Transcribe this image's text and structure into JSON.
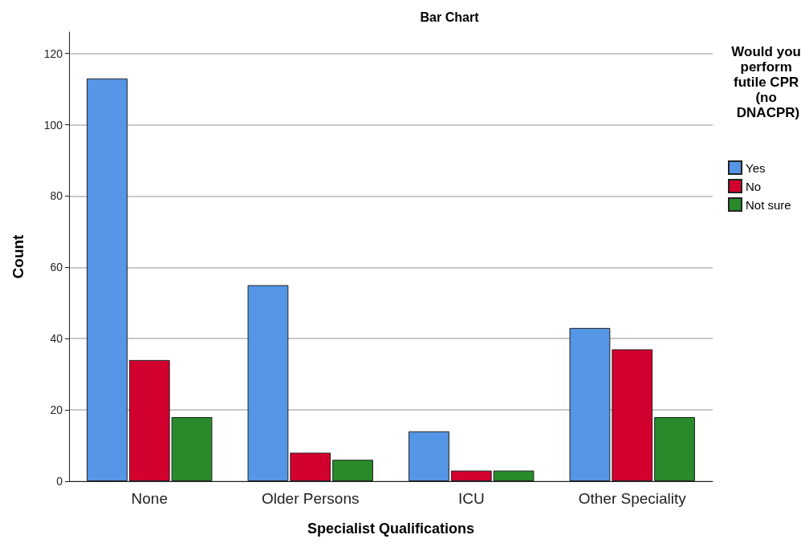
{
  "chart_data": {
    "type": "bar",
    "title": "Bar Chart",
    "xlabel": "Specialist Qualifications",
    "ylabel": "Count",
    "legend_title": "Would you perform futile CPR (no DNACPR)",
    "categories": [
      "None",
      "Older Persons",
      "ICU",
      "Other Speciality"
    ],
    "series": [
      {
        "name": "Yes",
        "color": "#5596e6",
        "values": [
          113,
          55,
          14,
          43
        ]
      },
      {
        "name": "No",
        "color": "#d2002e",
        "values": [
          34,
          8,
          3,
          37
        ]
      },
      {
        "name": "Not sure",
        "color": "#288a2b",
        "values": [
          18,
          6,
          3,
          18
        ]
      }
    ],
    "ylim": [
      0,
      126
    ],
    "yticks": [
      0,
      20,
      40,
      60,
      80,
      100,
      120
    ],
    "grid": "y",
    "legend": "top right"
  }
}
